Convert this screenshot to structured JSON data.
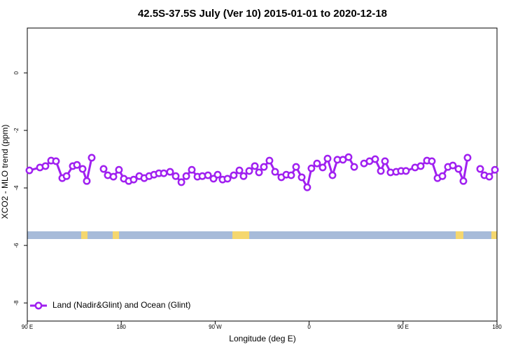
{
  "chart_data": {
    "type": "line",
    "title": "42.5S-37.5S July (Ver 10)   2015-01-01 to 2020-12-18",
    "x_label": "Longitude (deg E)",
    "y_label": "XCO2 - MLO trend (ppm)",
    "xlim": [
      90,
      540
    ],
    "ylim": [
      -8.63,
      1.56
    ],
    "xticks": [
      {
        "value": 90,
        "label": "90 E"
      },
      {
        "value": 180,
        "label": "180"
      },
      {
        "value": 270,
        "label": "90 W"
      },
      {
        "value": 360,
        "label": "0"
      },
      {
        "value": 450,
        "label": "90 E"
      },
      {
        "value": 540,
        "label": "180"
      }
    ],
    "yticks": [
      0,
      -2,
      -4,
      -6,
      -8
    ],
    "legend": "bottom-left",
    "x": [
      92.0,
      102.1,
      107.4,
      112.8,
      117.5,
      123.5,
      127.6,
      133.6,
      137.6,
      143.0,
      147.0,
      151.7,
      null,
      163.1,
      167.1,
      172.5,
      177.8,
      182.5,
      187.2,
      191.9,
      197.3,
      202.0,
      206.7,
      211.4,
      216.1,
      220.8,
      226.8,
      232.2,
      237.6,
      242.3,
      247.6,
      253.0,
      257.7,
      263.1,
      268.4,
      272.4,
      277.1,
      281.8,
      287.8,
      293.2,
      297.2,
      302.6,
      308.0,
      312.0,
      316.7,
      322.0,
      327.4,
      333.4,
      338.1,
      342.8,
      347.5,
      352.9,
      358.2,
      362.2,
      367.6,
      373.0,
      377.7,
      382.4,
      387.1,
      392.4,
      397.8,
      403.2,
      null,
      412.6,
      417.9,
      423.3,
      428.7,
      432.7,
      438.0,
      443.4,
      448.1,
      452.8,
      461.5,
      466.9,
      472.9,
      477.6,
      483.0,
      487.7,
      493.0,
      497.7,
      503.1,
      507.8,
      511.8,
      null,
      523.9,
      527.9,
      532.6,
      538.0
    ],
    "series": [
      {
        "name": "Land (Nadir&Glint) and Ocean (Glint)",
        "color": "#a020f0",
        "values": [
          -3.39,
          -3.29,
          -3.24,
          -3.05,
          -3.07,
          -3.66,
          -3.59,
          -3.24,
          -3.2,
          -3.34,
          -3.76,
          -2.95,
          null,
          -3.34,
          -3.56,
          -3.61,
          -3.37,
          -3.68,
          -3.76,
          -3.71,
          -3.59,
          -3.66,
          -3.59,
          -3.54,
          -3.49,
          -3.49,
          -3.44,
          -3.59,
          -3.8,
          -3.59,
          -3.37,
          -3.61,
          -3.59,
          -3.56,
          -3.68,
          -3.54,
          -3.71,
          -3.68,
          -3.56,
          -3.39,
          -3.59,
          -3.41,
          -3.24,
          -3.46,
          -3.27,
          -3.05,
          -3.44,
          -3.63,
          -3.54,
          -3.56,
          -3.27,
          -3.63,
          -3.98,
          -3.32,
          -3.15,
          -3.29,
          -2.98,
          -3.56,
          -3.02,
          -3.02,
          -2.93,
          -3.27,
          null,
          -3.15,
          -3.07,
          -3.0,
          -3.41,
          -3.07,
          -3.46,
          -3.44,
          -3.41,
          -3.41,
          -3.29,
          -3.24,
          -3.05,
          -3.07,
          -3.66,
          -3.59,
          -3.27,
          -3.22,
          -3.34,
          -3.76,
          -2.95,
          null,
          -3.34,
          -3.56,
          -3.61,
          -3.37
        ]
      }
    ]
  }
}
